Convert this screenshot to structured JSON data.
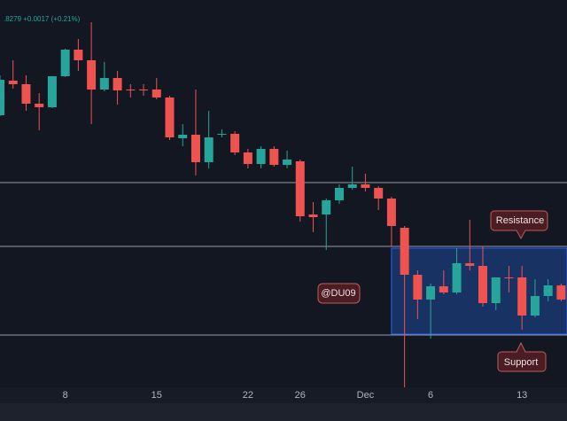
{
  "chart_data": {
    "type": "candlestick",
    "title": ".8279  +0.0017 (+0.21%)",
    "categories": [
      null,
      null,
      null,
      null,
      null,
      "8",
      null,
      null,
      null,
      null,
      null,
      null,
      "15",
      null,
      null,
      null,
      null,
      null,
      null,
      "22",
      null,
      null,
      null,
      "26",
      null,
      null,
      null,
      null,
      "Dec",
      null,
      null,
      null,
      null,
      "6",
      null,
      null,
      null,
      null,
      null,
      null,
      "13",
      null,
      null,
      null
    ],
    "open": [
      310,
      349,
      345,
      323,
      319,
      354,
      384,
      372,
      339,
      352,
      339,
      339,
      339,
      330,
      284,
      288,
      257,
      288,
      289,
      268,
      255,
      272,
      254,
      258,
      198,
      198,
      214,
      228,
      232,
      228,
      216,
      183,
      130,
      102,
      117,
      110,
      143,
      140,
      98,
      127,
      127,
      84,
      106,
      118
    ],
    "high": [
      355,
      372,
      355,
      335,
      354,
      385,
      396,
      415,
      370,
      360,
      345,
      345,
      352,
      332,
      300,
      339,
      315,
      294,
      292,
      272,
      275,
      275,
      270,
      260,
      212,
      216,
      232,
      252,
      244,
      230,
      218,
      185,
      135,
      120,
      135,
      160,
      192,
      162,
      127,
      140,
      140,
      125,
      125,
      120
    ],
    "low": [
      309,
      340,
      315,
      293,
      318,
      353,
      360,
      300,
      337,
      322,
      330,
      332,
      328,
      282,
      275,
      242,
      250,
      285,
      265,
      250,
      250,
      252,
      250,
      190,
      178,
      158,
      210,
      226,
      224,
      203,
      162,
      3,
      80,
      58,
      108,
      108,
      135,
      94,
      90,
      110,
      68,
      82,
      100,
      100
    ],
    "close": [
      350,
      345,
      323,
      319,
      354,
      384,
      372,
      339,
      352,
      338,
      338,
      338,
      330,
      285,
      288,
      257,
      285,
      289,
      268,
      255,
      272,
      254,
      260,
      196,
      195,
      214,
      228,
      232,
      228,
      216,
      185,
      130,
      102,
      117,
      110,
      143,
      140,
      98,
      127,
      126,
      84,
      106,
      118,
      102
    ],
    "up_color": "#26a69a",
    "down_color": "#ef5350",
    "ylim": [
      0,
      440
    ],
    "levels": [
      234,
      162,
      62
    ],
    "zone": [
      63,
      160
    ],
    "annotations": [
      "Resistance",
      "@DU09",
      "Support"
    ]
  }
}
